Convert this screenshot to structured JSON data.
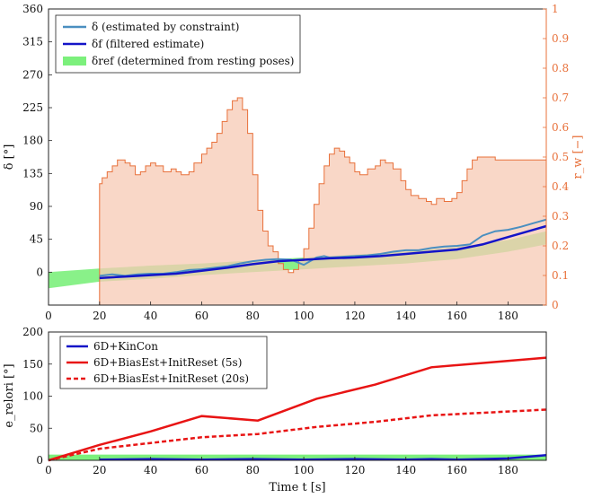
{
  "chart_data": [
    {
      "type": "line",
      "ylabel": "δ [°]",
      "y2label": "r_w [−]",
      "xlim": [
        0,
        195
      ],
      "ylim": [
        -45,
        360
      ],
      "y2lim": [
        0,
        1
      ],
      "x_ticks": [
        0,
        20,
        40,
        60,
        80,
        100,
        120,
        140,
        160,
        180
      ],
      "y_ticks": [
        0,
        45,
        90,
        135,
        180,
        225,
        270,
        315,
        360
      ],
      "y2_ticks": [
        0,
        0.1,
        0.2,
        0.3,
        0.4,
        0.5,
        0.6,
        0.7,
        0.8,
        0.9,
        1
      ],
      "legend_position": "top-left",
      "legend": [
        {
          "label": "δ (estimated by constraint)",
          "color": "#4a8fc0"
        },
        {
          "label": "δf (filtered estimate)",
          "color": "#1414c8"
        },
        {
          "label": "δref (determined from resting poses)",
          "color": "#7cf07c"
        }
      ],
      "series": [
        {
          "name": "δ (estimated by constraint)",
          "color": "#4a8fc0",
          "x": [
            20,
            25,
            30,
            35,
            40,
            45,
            50,
            55,
            60,
            65,
            70,
            75,
            80,
            85,
            90,
            95,
            100,
            105,
            108,
            110,
            115,
            120,
            125,
            130,
            135,
            140,
            145,
            150,
            155,
            160,
            165,
            170,
            175,
            180,
            185,
            190,
            195
          ],
          "y": [
            -5,
            -3,
            -5,
            -3,
            -2,
            -2,
            0,
            3,
            4,
            6,
            8,
            12,
            15,
            17,
            18,
            17,
            10,
            20,
            22,
            20,
            21,
            22,
            23,
            25,
            28,
            30,
            30,
            33,
            35,
            36,
            38,
            50,
            56,
            58,
            62,
            67,
            72
          ]
        },
        {
          "name": "δf (filtered estimate)",
          "color": "#1414c8",
          "x": [
            20,
            30,
            40,
            50,
            60,
            70,
            80,
            90,
            100,
            110,
            120,
            130,
            140,
            150,
            160,
            170,
            180,
            190,
            195
          ],
          "y": [
            -8,
            -6,
            -4,
            -2,
            2,
            6,
            11,
            15,
            17,
            19,
            20,
            22,
            25,
            28,
            31,
            38,
            48,
            58,
            63
          ]
        },
        {
          "name": "r_w",
          "color": "#e8703a",
          "axis": "right",
          "x": [
            20,
            21,
            23,
            25,
            27,
            30,
            32,
            34,
            36,
            38,
            40,
            42,
            45,
            48,
            50,
            52,
            55,
            57,
            60,
            62,
            64,
            66,
            68,
            70,
            72,
            74,
            76,
            78,
            80,
            82,
            84,
            86,
            88,
            90,
            92,
            94,
            96,
            98,
            100,
            102,
            104,
            106,
            108,
            110,
            112,
            114,
            116,
            118,
            120,
            122,
            125,
            128,
            130,
            132,
            135,
            138,
            140,
            142,
            145,
            148,
            150,
            152,
            155,
            158,
            160,
            162,
            164,
            166,
            168,
            170,
            172,
            175,
            180,
            185,
            190,
            195
          ],
          "y": [
            0.41,
            0.43,
            0.45,
            0.47,
            0.49,
            0.48,
            0.47,
            0.44,
            0.45,
            0.47,
            0.48,
            0.47,
            0.45,
            0.46,
            0.45,
            0.44,
            0.45,
            0.48,
            0.51,
            0.53,
            0.55,
            0.58,
            0.62,
            0.66,
            0.69,
            0.7,
            0.66,
            0.58,
            0.44,
            0.32,
            0.25,
            0.2,
            0.18,
            0.14,
            0.12,
            0.11,
            0.12,
            0.15,
            0.19,
            0.26,
            0.34,
            0.41,
            0.47,
            0.51,
            0.53,
            0.52,
            0.5,
            0.48,
            0.45,
            0.44,
            0.46,
            0.47,
            0.49,
            0.48,
            0.46,
            0.42,
            0.39,
            0.37,
            0.36,
            0.35,
            0.34,
            0.36,
            0.35,
            0.36,
            0.38,
            0.42,
            0.46,
            0.49,
            0.5,
            0.5,
            0.5,
            0.49,
            0.49,
            0.49,
            0.49,
            0.5
          ]
        }
      ],
      "band": {
        "name": "δref (determined from resting poses)",
        "color": "#7cf07c",
        "x": [
          0,
          20,
          40,
          60,
          80,
          100,
          120,
          140,
          160,
          180,
          195
        ],
        "lower": [
          -22,
          -13,
          -9,
          -4,
          0,
          4,
          8,
          12,
          18,
          28,
          38
        ],
        "upper": [
          0,
          5,
          9,
          12,
          16,
          20,
          24,
          28,
          34,
          44,
          56
        ]
      }
    },
    {
      "type": "line",
      "xlabel": "Time t [s]",
      "ylabel": "e_relori [°]",
      "xlim": [
        0,
        195
      ],
      "ylim": [
        0,
        200
      ],
      "x_ticks": [
        0,
        20,
        40,
        60,
        80,
        100,
        120,
        140,
        160,
        180
      ],
      "y_ticks": [
        0,
        50,
        100,
        150,
        200
      ],
      "legend_position": "top-left",
      "legend": [
        {
          "label": "6D+KinCon",
          "color": "#1414c8",
          "dash": false
        },
        {
          "label": "6D+BiasEst+InitReset (5s)",
          "color": "#e81414",
          "dash": false
        },
        {
          "label": "6D+BiasEst+InitReset (20s)",
          "color": "#e81414",
          "dash": true
        }
      ],
      "series": [
        {
          "name": "6D+KinCon",
          "color": "#1414c8",
          "x": [
            20,
            40,
            60,
            80,
            100,
            120,
            140,
            150,
            160,
            170,
            180,
            195
          ],
          "y": [
            1,
            2,
            1,
            2,
            1,
            2,
            1,
            2,
            1,
            2,
            3,
            8
          ]
        },
        {
          "name": "6D+BiasEst+InitReset (5s)",
          "color": "#e81414",
          "x": [
            0,
            20,
            40,
            60,
            82,
            105,
            128,
            150,
            195
          ],
          "y": [
            0,
            24,
            45,
            69,
            62,
            96,
            118,
            145,
            160
          ]
        },
        {
          "name": "6D+BiasEst+InitReset (20s)",
          "color": "#e81414",
          "dash": true,
          "x": [
            0,
            20,
            40,
            60,
            82,
            105,
            128,
            150,
            195
          ],
          "y": [
            0,
            18,
            27,
            36,
            41,
            52,
            60,
            70,
            79
          ]
        }
      ],
      "band": {
        "color": "#7cf07c",
        "x": [
          0,
          195
        ],
        "lower": [
          0,
          0
        ],
        "upper": [
          9,
          9
        ]
      }
    }
  ]
}
